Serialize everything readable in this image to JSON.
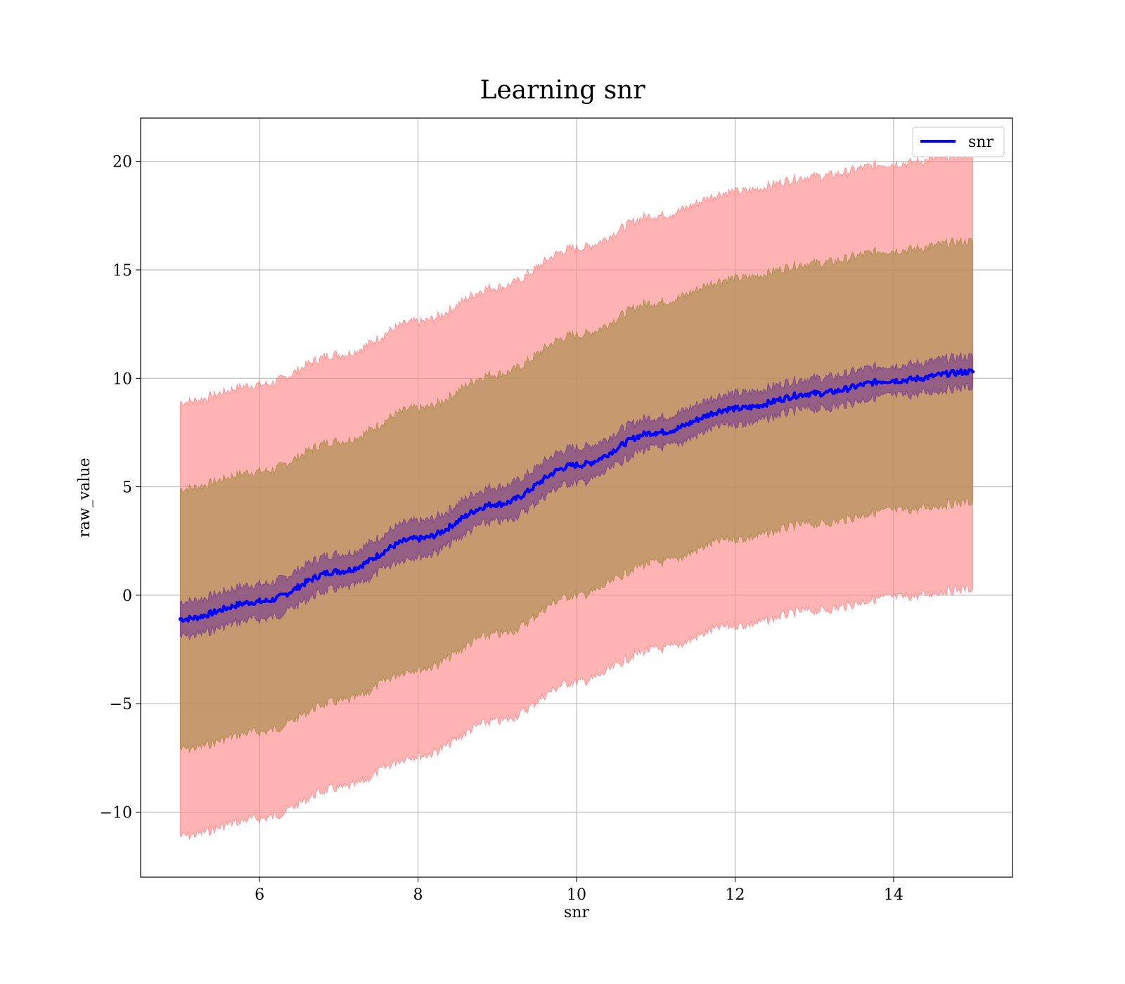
{
  "chart_data": {
    "type": "line",
    "title": "Learning snr",
    "xlabel": "snr",
    "ylabel": "raw_value",
    "xlim": [
      4.5,
      15.5
    ],
    "ylim": [
      -13,
      22
    ],
    "xticks": [
      6,
      8,
      10,
      12,
      14
    ],
    "yticks": [
      -10,
      -5,
      0,
      5,
      10,
      15,
      20
    ],
    "xtick_labels": [
      "6",
      "8",
      "10",
      "12",
      "14"
    ],
    "ytick_labels": [
      "−10",
      "−5",
      "0",
      "5",
      "10",
      "15",
      "20"
    ],
    "grid": true,
    "legend": {
      "position": "top-right",
      "entries": [
        "snr"
      ]
    },
    "x": [
      5,
      6,
      7,
      8,
      9,
      10,
      11,
      12,
      13,
      14,
      15
    ],
    "series": [
      {
        "name": "snr",
        "color": "#0000ff",
        "values": [
          -1.1,
          -0.3,
          1.1,
          2.6,
          4.2,
          6.0,
          7.5,
          8.6,
          9.3,
          9.9,
          10.3
        ],
        "band_inner": {
          "color": "#7b3f8f",
          "lower": [
            -1.9,
            -1.1,
            0.3,
            1.8,
            3.4,
            5.2,
            6.8,
            7.9,
            8.6,
            9.2,
            9.6
          ],
          "upper": [
            -0.3,
            0.5,
            1.9,
            3.4,
            5.0,
            6.8,
            8.2,
            9.3,
            10.0,
            10.6,
            11.0
          ]
        },
        "band_middle": {
          "color": "#a88c4a",
          "lower": [
            -7.1,
            -6.3,
            -4.9,
            -3.4,
            -1.8,
            0.0,
            1.5,
            2.6,
            3.3,
            3.9,
            4.3
          ],
          "upper": [
            4.9,
            5.7,
            7.1,
            8.6,
            10.2,
            12.0,
            13.5,
            14.6,
            15.3,
            15.9,
            16.3
          ]
        },
        "band_outer": {
          "color": "#ff8a8a",
          "lower": [
            -11.1,
            -10.3,
            -8.9,
            -7.4,
            -5.8,
            -4.0,
            -2.5,
            -1.4,
            -0.7,
            -0.1,
            0.3
          ],
          "upper": [
            8.9,
            9.7,
            11.1,
            12.6,
            14.2,
            16.0,
            17.5,
            18.6,
            19.3,
            19.9,
            20.3
          ]
        }
      }
    ]
  }
}
